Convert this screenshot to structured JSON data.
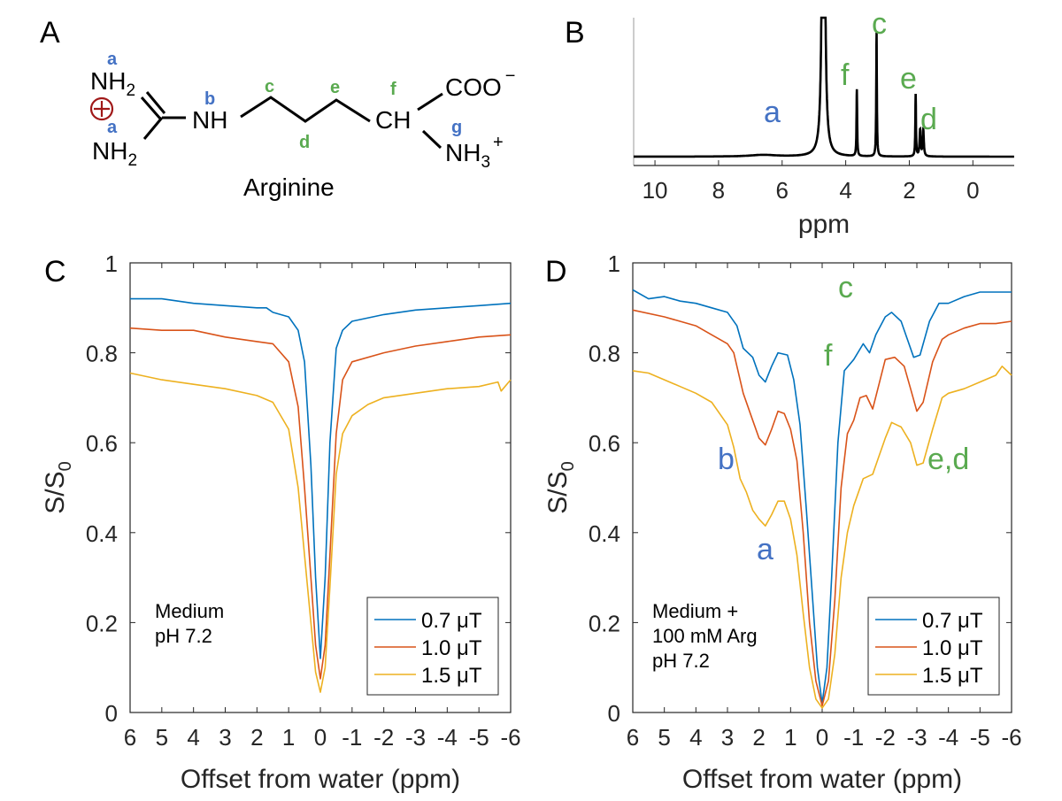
{
  "colors": {
    "blue_label": "#4472C4",
    "green_label": "#5AAA50",
    "charge": "#A01818",
    "series": [
      "#0072BD",
      "#D95319",
      "#EDB120"
    ]
  },
  "panel_labels": {
    "A": "A",
    "B": "B",
    "C": "C",
    "D": "D"
  },
  "molecule": {
    "name": "Arginine",
    "atoms": {
      "nh2_top": {
        "text": "NH",
        "sub": "2"
      },
      "nh2_bottom": {
        "text": "NH",
        "sub": "2"
      },
      "nh": "NH",
      "ch": "CH",
      "coo": {
        "text": "COO",
        "sup": "−"
      },
      "nh3": {
        "text": "NH",
        "sub": "3",
        "sup": "+"
      }
    },
    "charge_symbol": "circled-plus",
    "labels": {
      "a1": "a",
      "a2": "a",
      "b": "b",
      "c": "c",
      "d": "d",
      "e": "e",
      "f": "f",
      "g": "g"
    }
  },
  "chart_data": [
    {
      "panel": "B",
      "type": "line",
      "xlabel": "ppm",
      "ylabel": "",
      "xlim": [
        10.67,
        -1.3
      ],
      "x_reversed": true,
      "xticks": [
        10,
        8,
        6,
        4,
        2,
        0
      ],
      "yticks": [],
      "grid": false,
      "peaks": [
        {
          "ppm": 6.6,
          "height": 0.012,
          "width": 0.5
        },
        {
          "ppm": 4.7,
          "height": 6.0,
          "width": 0.03
        },
        {
          "ppm": 3.65,
          "height": 0.48,
          "width": 0.012
        },
        {
          "ppm": 3.03,
          "height": 0.89,
          "width": 0.012
        },
        {
          "ppm": 1.8,
          "height": 0.45,
          "width": 0.012
        },
        {
          "ppm": 1.66,
          "height": 0.19,
          "width": 0.02
        },
        {
          "ppm": 1.56,
          "height": 0.19,
          "width": 0.02
        }
      ],
      "annotations": [
        {
          "text": "a",
          "color": "blue"
        },
        {
          "text": "f",
          "color": "green"
        },
        {
          "text": "c",
          "color": "green"
        },
        {
          "text": "e",
          "color": "green"
        },
        {
          "text": "d",
          "color": "green"
        }
      ]
    },
    {
      "panel": "C",
      "type": "line",
      "xlabel": "Offset from water (ppm)",
      "ylabel": "S/S",
      "ylabel_sub": "0",
      "xlim": [
        6,
        -6
      ],
      "ylim": [
        0,
        1
      ],
      "x_reversed": true,
      "xticks": [
        6,
        5,
        4,
        3,
        2,
        1,
        0,
        -1,
        -2,
        -3,
        -4,
        -5,
        -6
      ],
      "yticks": [
        0,
        0.2,
        0.4,
        0.6,
        0.8,
        1
      ],
      "grid": false,
      "legend_position": "bottom-right",
      "text_box": [
        "Medium",
        "pH 7.2"
      ],
      "series": [
        {
          "name": "0.7 μT",
          "x": [
            6,
            5,
            4,
            3,
            2,
            1.7,
            1.5,
            1,
            0.7,
            0.5,
            0.3,
            0.15,
            0,
            -0.15,
            -0.3,
            -0.5,
            -0.7,
            -1,
            -2,
            -3,
            -4,
            -5,
            -6
          ],
          "y": [
            0.92,
            0.92,
            0.91,
            0.905,
            0.9,
            0.9,
            0.89,
            0.88,
            0.85,
            0.78,
            0.55,
            0.3,
            0.12,
            0.3,
            0.6,
            0.81,
            0.85,
            0.87,
            0.885,
            0.895,
            0.9,
            0.905,
            0.91
          ]
        },
        {
          "name": "1.0 μT",
          "x": [
            6,
            5,
            4,
            3,
            2,
            1.5,
            1,
            0.7,
            0.5,
            0.3,
            0.15,
            0,
            -0.15,
            -0.3,
            -0.5,
            -0.7,
            -1,
            -2,
            -3,
            -4,
            -5,
            -6
          ],
          "y": [
            0.855,
            0.85,
            0.85,
            0.835,
            0.825,
            0.82,
            0.78,
            0.68,
            0.5,
            0.3,
            0.15,
            0.075,
            0.15,
            0.35,
            0.62,
            0.74,
            0.78,
            0.8,
            0.815,
            0.825,
            0.835,
            0.84
          ]
        },
        {
          "name": "1.5 μT",
          "x": [
            6,
            5,
            4,
            3,
            2,
            1.5,
            1,
            0.7,
            0.5,
            0.3,
            0.15,
            0,
            -0.15,
            -0.3,
            -0.5,
            -0.7,
            -1,
            -1.5,
            -2,
            -3,
            -4,
            -5,
            -5.6,
            -5.7,
            -6
          ],
          "y": [
            0.755,
            0.74,
            0.73,
            0.72,
            0.705,
            0.69,
            0.63,
            0.5,
            0.35,
            0.2,
            0.09,
            0.045,
            0.1,
            0.28,
            0.53,
            0.62,
            0.66,
            0.685,
            0.7,
            0.71,
            0.72,
            0.725,
            0.735,
            0.715,
            0.74
          ]
        }
      ]
    },
    {
      "panel": "D",
      "type": "line",
      "xlabel": "Offset from water (ppm)",
      "ylabel": "S/S",
      "ylabel_sub": "0",
      "xlim": [
        6,
        -6
      ],
      "ylim": [
        0,
        1
      ],
      "x_reversed": true,
      "xticks": [
        6,
        5,
        4,
        3,
        2,
        1,
        0,
        -1,
        -2,
        -3,
        -4,
        -5,
        -6
      ],
      "yticks": [
        0,
        0.2,
        0.4,
        0.6,
        0.8,
        1
      ],
      "grid": false,
      "legend_position": "bottom-right",
      "text_box": [
        "Medium +",
        "100 mM Arg",
        "pH 7.2"
      ],
      "annotations": [
        {
          "text": "c",
          "color": "green"
        },
        {
          "text": "f",
          "color": "green"
        },
        {
          "text": "e,d",
          "color": "green"
        },
        {
          "text": "b",
          "color": "blue"
        },
        {
          "text": "a",
          "color": "blue"
        }
      ],
      "series": [
        {
          "name": "0.7 μT",
          "x": [
            6,
            5.5,
            5,
            4.5,
            4,
            3.5,
            3,
            2.7,
            2.5,
            2.2,
            2,
            1.8,
            1.6,
            1.4,
            1.1,
            0.9,
            0.7,
            0.5,
            0.3,
            0.15,
            0,
            -0.15,
            -0.3,
            -0.5,
            -0.7,
            -1,
            -1.3,
            -1.5,
            -1.7,
            -2,
            -2.2,
            -2.5,
            -2.7,
            -2.9,
            -3.1,
            -3.4,
            -3.7,
            -4,
            -4.5,
            -5,
            -5.5,
            -6
          ],
          "y": [
            0.94,
            0.92,
            0.925,
            0.915,
            0.91,
            0.9,
            0.89,
            0.86,
            0.81,
            0.79,
            0.75,
            0.735,
            0.77,
            0.8,
            0.795,
            0.74,
            0.64,
            0.45,
            0.25,
            0.1,
            0.02,
            0.1,
            0.3,
            0.6,
            0.76,
            0.785,
            0.82,
            0.8,
            0.84,
            0.88,
            0.89,
            0.87,
            0.83,
            0.79,
            0.795,
            0.87,
            0.91,
            0.91,
            0.925,
            0.935,
            0.935,
            0.935
          ]
        },
        {
          "name": "1.0 μT",
          "x": [
            6,
            5,
            4,
            3.5,
            3,
            2.8,
            2.5,
            2.2,
            2,
            1.8,
            1.6,
            1.4,
            1.2,
            1,
            0.8,
            0.6,
            0.4,
            0.2,
            0,
            -0.2,
            -0.4,
            -0.6,
            -0.8,
            -1,
            -1.2,
            -1.4,
            -1.6,
            -1.8,
            -2,
            -2.3,
            -2.6,
            -2.8,
            -3,
            -3.2,
            -3.5,
            -3.8,
            -4,
            -4.5,
            -5,
            -5.5,
            -6
          ],
          "y": [
            0.895,
            0.88,
            0.86,
            0.84,
            0.82,
            0.8,
            0.71,
            0.65,
            0.61,
            0.595,
            0.63,
            0.67,
            0.665,
            0.63,
            0.56,
            0.4,
            0.2,
            0.07,
            0.015,
            0.07,
            0.25,
            0.5,
            0.62,
            0.65,
            0.7,
            0.705,
            0.675,
            0.73,
            0.785,
            0.79,
            0.77,
            0.72,
            0.67,
            0.69,
            0.78,
            0.83,
            0.84,
            0.855,
            0.865,
            0.865,
            0.87
          ]
        },
        {
          "name": "1.5 μT",
          "x": [
            6,
            5.5,
            5,
            4.5,
            4,
            3.5,
            3,
            2.8,
            2.6,
            2.4,
            2.2,
            2,
            1.8,
            1.6,
            1.4,
            1.2,
            1,
            0.8,
            0.6,
            0.4,
            0.2,
            0,
            -0.2,
            -0.4,
            -0.6,
            -0.8,
            -1,
            -1.3,
            -1.6,
            -1.8,
            -2,
            -2.2,
            -2.5,
            -2.8,
            -3,
            -3.2,
            -3.5,
            -3.8,
            -4,
            -4.5,
            -5,
            -5.5,
            -5.7,
            -6
          ],
          "y": [
            0.76,
            0.755,
            0.74,
            0.725,
            0.71,
            0.69,
            0.64,
            0.59,
            0.52,
            0.49,
            0.45,
            0.43,
            0.415,
            0.44,
            0.47,
            0.47,
            0.43,
            0.35,
            0.22,
            0.1,
            0.03,
            0.01,
            0.03,
            0.13,
            0.3,
            0.4,
            0.46,
            0.52,
            0.53,
            0.57,
            0.61,
            0.645,
            0.635,
            0.6,
            0.55,
            0.555,
            0.63,
            0.7,
            0.71,
            0.72,
            0.735,
            0.75,
            0.77,
            0.75
          ]
        }
      ]
    }
  ]
}
